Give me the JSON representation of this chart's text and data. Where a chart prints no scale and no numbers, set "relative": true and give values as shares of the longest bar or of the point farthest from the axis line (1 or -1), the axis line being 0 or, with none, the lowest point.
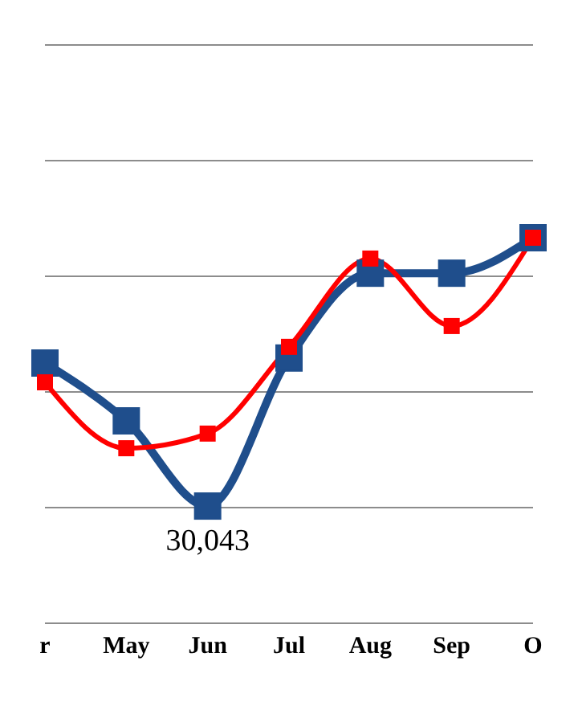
{
  "chart_data": {
    "type": "line",
    "relative": true,
    "categories": [
      "r",
      "May",
      "Jun",
      "Jul",
      "Aug",
      "Sep",
      "O"
    ],
    "series": [
      {
        "color": "#1f4e8c",
        "values": [
          0.675,
          0.525,
          0.304,
          0.688,
          0.908,
          0.908,
          1.0
        ]
      },
      {
        "color": "#ff0000",
        "values": [
          0.625,
          0.454,
          0.492,
          0.717,
          0.946,
          0.771,
          1.0
        ]
      }
    ],
    "annotations": [
      {
        "text": "30,043",
        "x": "Jun",
        "y": 0.304
      }
    ],
    "grid": "y",
    "marker": "square",
    "line_style": "solid"
  }
}
